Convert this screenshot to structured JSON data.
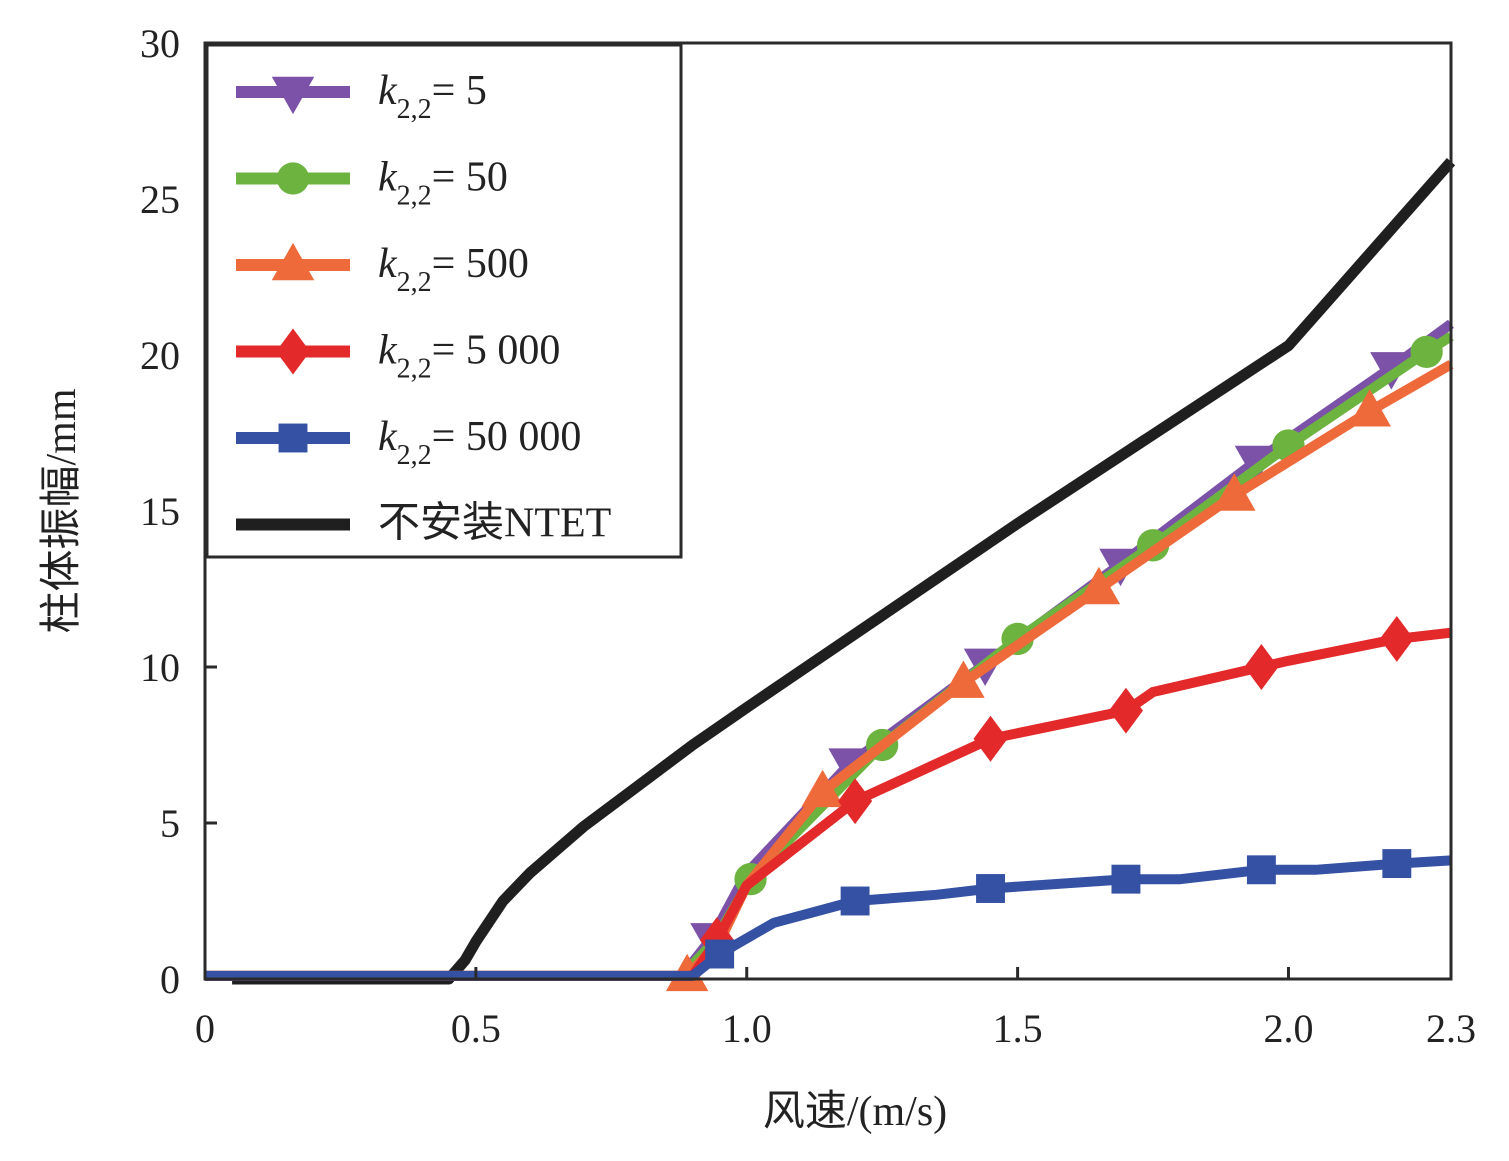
{
  "chart_data": {
    "type": "line",
    "title": "",
    "xlabel": "风速/(m/s)",
    "ylabel": "柱体振幅/mm",
    "xlim": [
      0,
      2.3
    ],
    "ylim": [
      0,
      30
    ],
    "xticks": [
      0,
      0.5,
      1.0,
      1.5,
      2.0,
      2.3
    ],
    "xtick_labels": [
      "0",
      "0.5",
      "1.0",
      "1.5",
      "2.0",
      "2.3"
    ],
    "yticks": [
      0,
      5,
      10,
      15,
      20,
      25,
      30
    ],
    "ytick_labels": [
      "0",
      "5",
      "10",
      "15",
      "20",
      "25",
      "30"
    ],
    "grid": false,
    "legend_position": "top-left",
    "series": [
      {
        "name": "k2,2 = 5",
        "label_main": "k",
        "label_sub": "2,2",
        "label_value": "= 5",
        "color": "#7b52a8",
        "marker": "triangle-down",
        "line": [
          [
            0,
            0.1
          ],
          [
            0.88,
            0.1
          ],
          [
            0.935,
            1.3
          ],
          [
            1.0,
            3.4
          ],
          [
            1.19,
            6.9
          ],
          [
            1.44,
            10.1
          ],
          [
            1.69,
            13.3
          ],
          [
            1.94,
            16.6
          ],
          [
            2.19,
            19.6
          ],
          [
            2.3,
            21.0
          ]
        ],
        "markers": [
          [
            0.935,
            1.3
          ],
          [
            1.19,
            6.9
          ],
          [
            1.44,
            10.1
          ],
          [
            1.69,
            13.3
          ],
          [
            1.94,
            16.6
          ],
          [
            2.19,
            19.6
          ]
        ]
      },
      {
        "name": "k2,2 = 50",
        "label_main": "k",
        "label_sub": "2,2",
        "label_value": "= 50",
        "color": "#6db33f",
        "marker": "circle",
        "line": [
          [
            0,
            0.1
          ],
          [
            0.88,
            0.1
          ],
          [
            0.94,
            1.2
          ],
          [
            1.007,
            3.2
          ],
          [
            1.25,
            7.5
          ],
          [
            1.5,
            10.9
          ],
          [
            1.75,
            13.9
          ],
          [
            2.0,
            17.1
          ],
          [
            2.255,
            20.1
          ],
          [
            2.3,
            20.6
          ]
        ],
        "markers": [
          [
            1.007,
            3.2
          ],
          [
            1.25,
            7.5
          ],
          [
            1.5,
            10.9
          ],
          [
            1.75,
            13.9
          ],
          [
            2.0,
            17.1
          ],
          [
            2.255,
            20.1
          ]
        ]
      },
      {
        "name": "k2,2 = 500",
        "label_main": "k",
        "label_sub": "2,2",
        "label_value": "= 500",
        "color": "#ee6a3a",
        "marker": "triangle-up",
        "line": [
          [
            0,
            0.1
          ],
          [
            0.89,
            0.1
          ],
          [
            0.95,
            1.2
          ],
          [
            1.0,
            3.0
          ],
          [
            1.14,
            6.0
          ],
          [
            1.4,
            9.5
          ],
          [
            1.65,
            12.5
          ],
          [
            1.9,
            15.5
          ],
          [
            2.15,
            18.2
          ],
          [
            2.3,
            19.7
          ]
        ],
        "markers": [
          [
            0.89,
            0.1
          ],
          [
            1.14,
            6.0
          ],
          [
            1.4,
            9.5
          ],
          [
            1.65,
            12.5
          ],
          [
            1.9,
            15.5
          ],
          [
            2.15,
            18.2
          ]
        ]
      },
      {
        "name": "k2,2 = 5 000",
        "label_main": "k",
        "label_sub": "2,2",
        "label_value": "= 5 000",
        "color": "#e3292a",
        "marker": "diamond",
        "line": [
          [
            0,
            0.1
          ],
          [
            0.9,
            0.1
          ],
          [
            0.945,
            1.25
          ],
          [
            1.0,
            3.0
          ],
          [
            1.2,
            5.7
          ],
          [
            1.45,
            7.7
          ],
          [
            1.7,
            8.6
          ],
          [
            1.75,
            9.2
          ],
          [
            1.95,
            10.0
          ],
          [
            2.0,
            10.2
          ],
          [
            2.2,
            10.9
          ],
          [
            2.3,
            11.1
          ]
        ],
        "markers": [
          [
            0.945,
            1.25
          ],
          [
            1.2,
            5.7
          ],
          [
            1.45,
            7.7
          ],
          [
            1.7,
            8.6
          ],
          [
            1.95,
            10.0
          ],
          [
            2.2,
            10.9
          ]
        ]
      },
      {
        "name": "k2,2 = 50 000",
        "label_main": "k",
        "label_sub": "2,2",
        "label_value": "= 50 000",
        "color": "#3451a3",
        "marker": "square",
        "line": [
          [
            0,
            0.1
          ],
          [
            0.9,
            0.1
          ],
          [
            0.95,
            0.8
          ],
          [
            1.05,
            1.8
          ],
          [
            1.2,
            2.5
          ],
          [
            1.35,
            2.7
          ],
          [
            1.45,
            2.9
          ],
          [
            1.7,
            3.2
          ],
          [
            1.8,
            3.2
          ],
          [
            1.95,
            3.5
          ],
          [
            2.05,
            3.5
          ],
          [
            2.2,
            3.7
          ],
          [
            2.3,
            3.8
          ]
        ],
        "markers": [
          [
            0.95,
            0.8
          ],
          [
            1.2,
            2.5
          ],
          [
            1.45,
            2.9
          ],
          [
            1.7,
            3.2
          ],
          [
            1.95,
            3.5
          ],
          [
            2.2,
            3.7
          ]
        ]
      },
      {
        "name": "不安装NTET",
        "label_text": "不安装NTET",
        "color": "#1f1f1f",
        "marker": "none",
        "line": [
          [
            0.05,
            0
          ],
          [
            0.45,
            0
          ],
          [
            0.48,
            0.6
          ],
          [
            0.5,
            1.2
          ],
          [
            0.55,
            2.5
          ],
          [
            0.6,
            3.4
          ],
          [
            0.7,
            4.9
          ],
          [
            0.8,
            6.2
          ],
          [
            0.9,
            7.5
          ],
          [
            1.0,
            8.7
          ],
          [
            1.5,
            14.6
          ],
          [
            2.0,
            20.3
          ],
          [
            2.3,
            26.2
          ]
        ],
        "markers": []
      }
    ]
  }
}
